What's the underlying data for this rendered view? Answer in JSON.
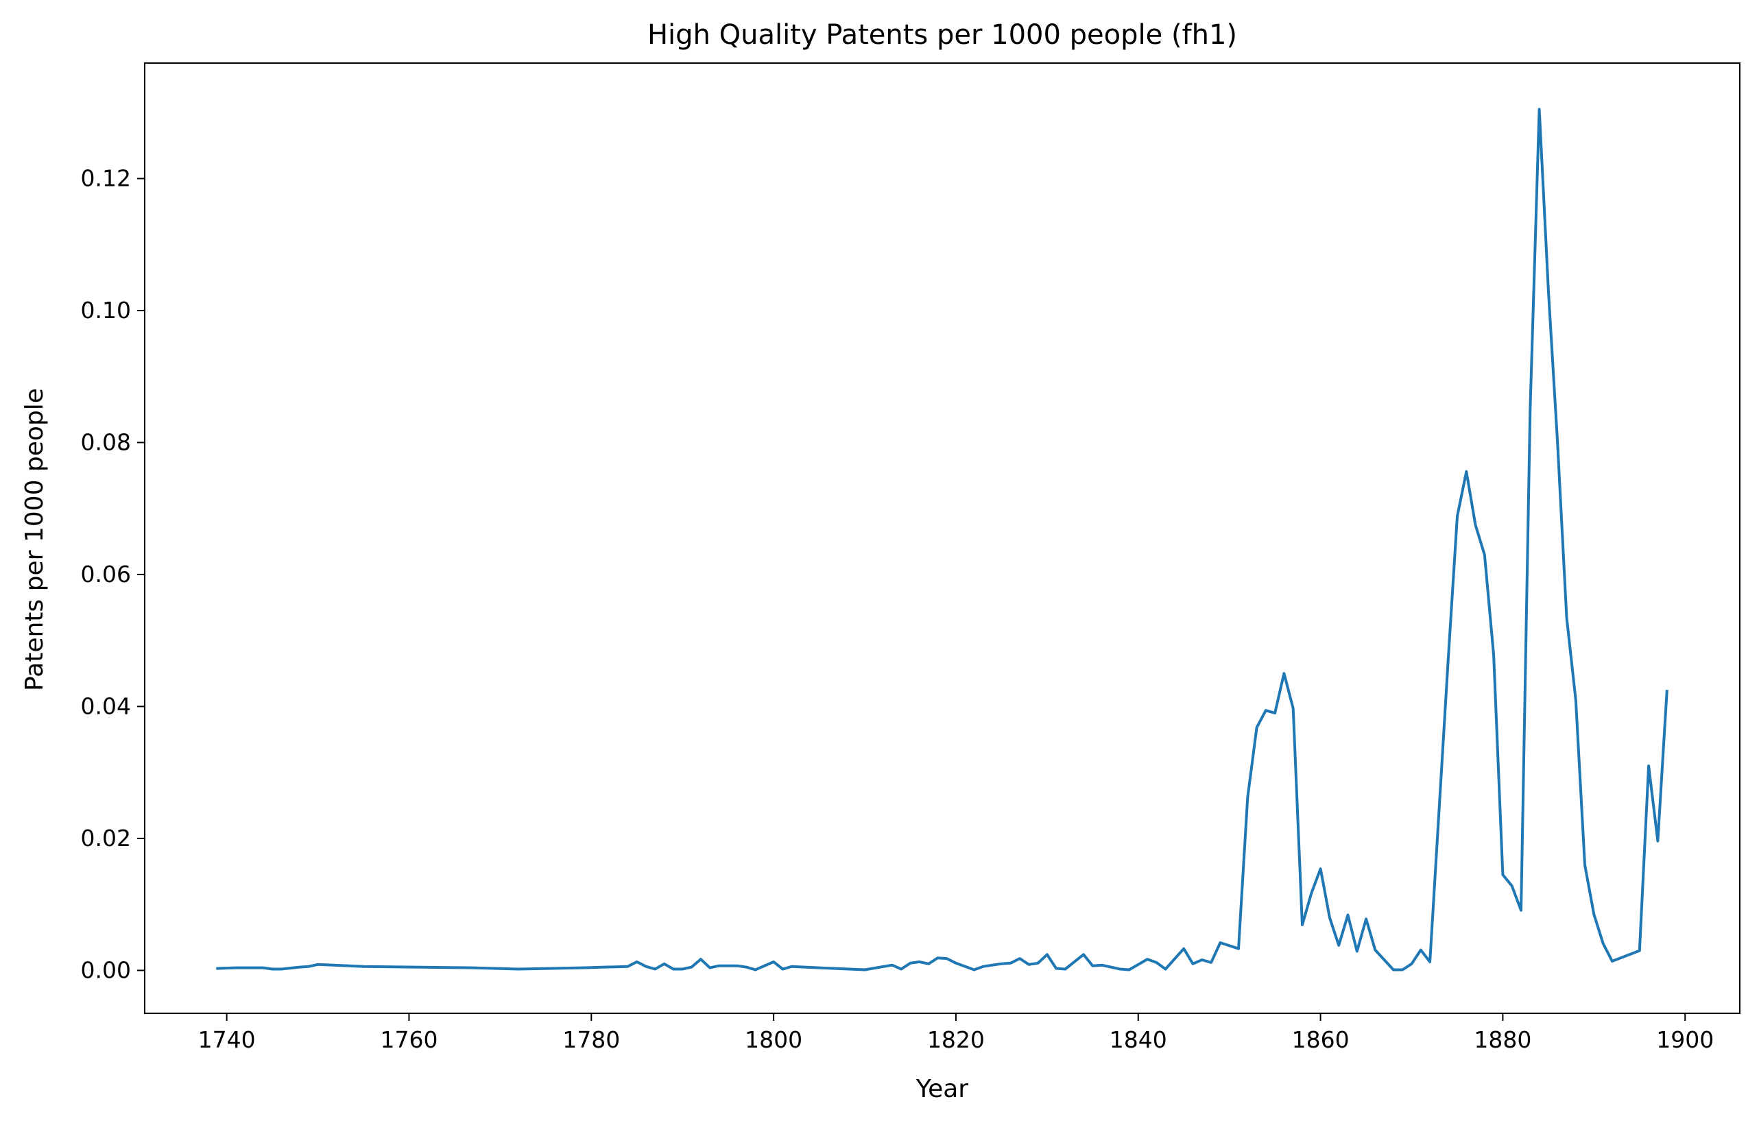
{
  "chart_data": {
    "type": "line",
    "title": "High Quality Patents per 1000 people (fh1)",
    "xlabel": "Year",
    "ylabel": "Patents per 1000 people",
    "xlim": [
      1731,
      1906
    ],
    "ylim": [
      -0.0065,
      0.1375
    ],
    "xticks": [
      1740,
      1760,
      1780,
      1800,
      1820,
      1840,
      1860,
      1880,
      1900
    ],
    "yticks": [
      0.0,
      0.02,
      0.04,
      0.06,
      0.08,
      0.1,
      0.12
    ],
    "ytick_labels": [
      "0.00",
      "0.02",
      "0.04",
      "0.06",
      "0.08",
      "0.10",
      "0.12"
    ],
    "grid": false,
    "legend": "none",
    "series": [
      {
        "color": "#1f77b4",
        "points": [
          [
            1739,
            0.0003
          ],
          [
            1741,
            0.0004
          ],
          [
            1743,
            0.0004
          ],
          [
            1744,
            0.0004
          ],
          [
            1745,
            0.0002
          ],
          [
            1746,
            0.0002
          ],
          [
            1748,
            0.0005
          ],
          [
            1749,
            0.0006
          ],
          [
            1750,
            0.0009
          ],
          [
            1755,
            0.0006
          ],
          [
            1767,
            0.0004
          ],
          [
            1772,
            0.0002
          ],
          [
            1779,
            0.0004
          ],
          [
            1784,
            0.0006
          ],
          [
            1785,
            0.0013
          ],
          [
            1786,
            0.0006
          ],
          [
            1787,
            0.0002
          ],
          [
            1788,
            0.001
          ],
          [
            1789,
            0.0002
          ],
          [
            1790,
            0.0002
          ],
          [
            1791,
            0.0005
          ],
          [
            1792,
            0.0017
          ],
          [
            1793,
            0.0004
          ],
          [
            1794,
            0.0007
          ],
          [
            1796,
            0.0007
          ],
          [
            1797,
            0.0005
          ],
          [
            1798,
            0.0001
          ],
          [
            1800,
            0.0013
          ],
          [
            1801,
            0.0002
          ],
          [
            1802,
            0.0006
          ],
          [
            1805,
            0.0004
          ],
          [
            1810,
            0.0001
          ],
          [
            1813,
            0.0008
          ],
          [
            1814,
            0.0002
          ],
          [
            1815,
            0.0011
          ],
          [
            1816,
            0.0013
          ],
          [
            1817,
            0.001
          ],
          [
            1818,
            0.0019
          ],
          [
            1819,
            0.0018
          ],
          [
            1820,
            0.0011
          ],
          [
            1822,
            0.0001
          ],
          [
            1823,
            0.0006
          ],
          [
            1824,
            0.0008
          ],
          [
            1825,
            0.001
          ],
          [
            1826,
            0.0011
          ],
          [
            1827,
            0.0018
          ],
          [
            1828,
            0.0009
          ],
          [
            1829,
            0.0011
          ],
          [
            1830,
            0.0024
          ],
          [
            1831,
            0.0003
          ],
          [
            1832,
            0.0002
          ],
          [
            1834,
            0.0024
          ],
          [
            1835,
            0.0007
          ],
          [
            1836,
            0.0008
          ],
          [
            1838,
            0.0002
          ],
          [
            1839,
            0.0001
          ],
          [
            1841,
            0.0017
          ],
          [
            1842,
            0.0012
          ],
          [
            1843,
            0.0002
          ],
          [
            1845,
            0.0033
          ],
          [
            1846,
            0.001
          ],
          [
            1847,
            0.0016
          ],
          [
            1848,
            0.0012
          ],
          [
            1849,
            0.0042
          ],
          [
            1851,
            0.0033
          ],
          [
            1852,
            0.0262
          ],
          [
            1853,
            0.0368
          ],
          [
            1854,
            0.0394
          ],
          [
            1855,
            0.039
          ],
          [
            1856,
            0.045
          ],
          [
            1857,
            0.0397
          ],
          [
            1858,
            0.0069
          ],
          [
            1859,
            0.0117
          ],
          [
            1860,
            0.0154
          ],
          [
            1861,
            0.008
          ],
          [
            1862,
            0.0038
          ],
          [
            1863,
            0.0084
          ],
          [
            1864,
            0.0029
          ],
          [
            1865,
            0.0078
          ],
          [
            1866,
            0.0031
          ],
          [
            1868,
            0.0001
          ],
          [
            1869,
            0.0001
          ],
          [
            1870,
            0.001
          ],
          [
            1871,
            0.0031
          ],
          [
            1872,
            0.0013
          ],
          [
            1874,
            0.047
          ],
          [
            1875,
            0.0688
          ],
          [
            1876,
            0.0756
          ],
          [
            1877,
            0.0675
          ],
          [
            1878,
            0.063
          ],
          [
            1879,
            0.0478
          ],
          [
            1880,
            0.0145
          ],
          [
            1881,
            0.0128
          ],
          [
            1882,
            0.0091
          ],
          [
            1883,
            0.085
          ],
          [
            1884,
            0.1305
          ],
          [
            1885,
            0.103
          ],
          [
            1886,
            0.08
          ],
          [
            1887,
            0.0535
          ],
          [
            1888,
            0.041
          ],
          [
            1889,
            0.016
          ],
          [
            1890,
            0.0085
          ],
          [
            1891,
            0.0041
          ],
          [
            1892,
            0.0014
          ],
          [
            1895,
            0.003
          ],
          [
            1896,
            0.031
          ],
          [
            1897,
            0.0196
          ],
          [
            1898,
            0.0423
          ]
        ]
      }
    ]
  }
}
